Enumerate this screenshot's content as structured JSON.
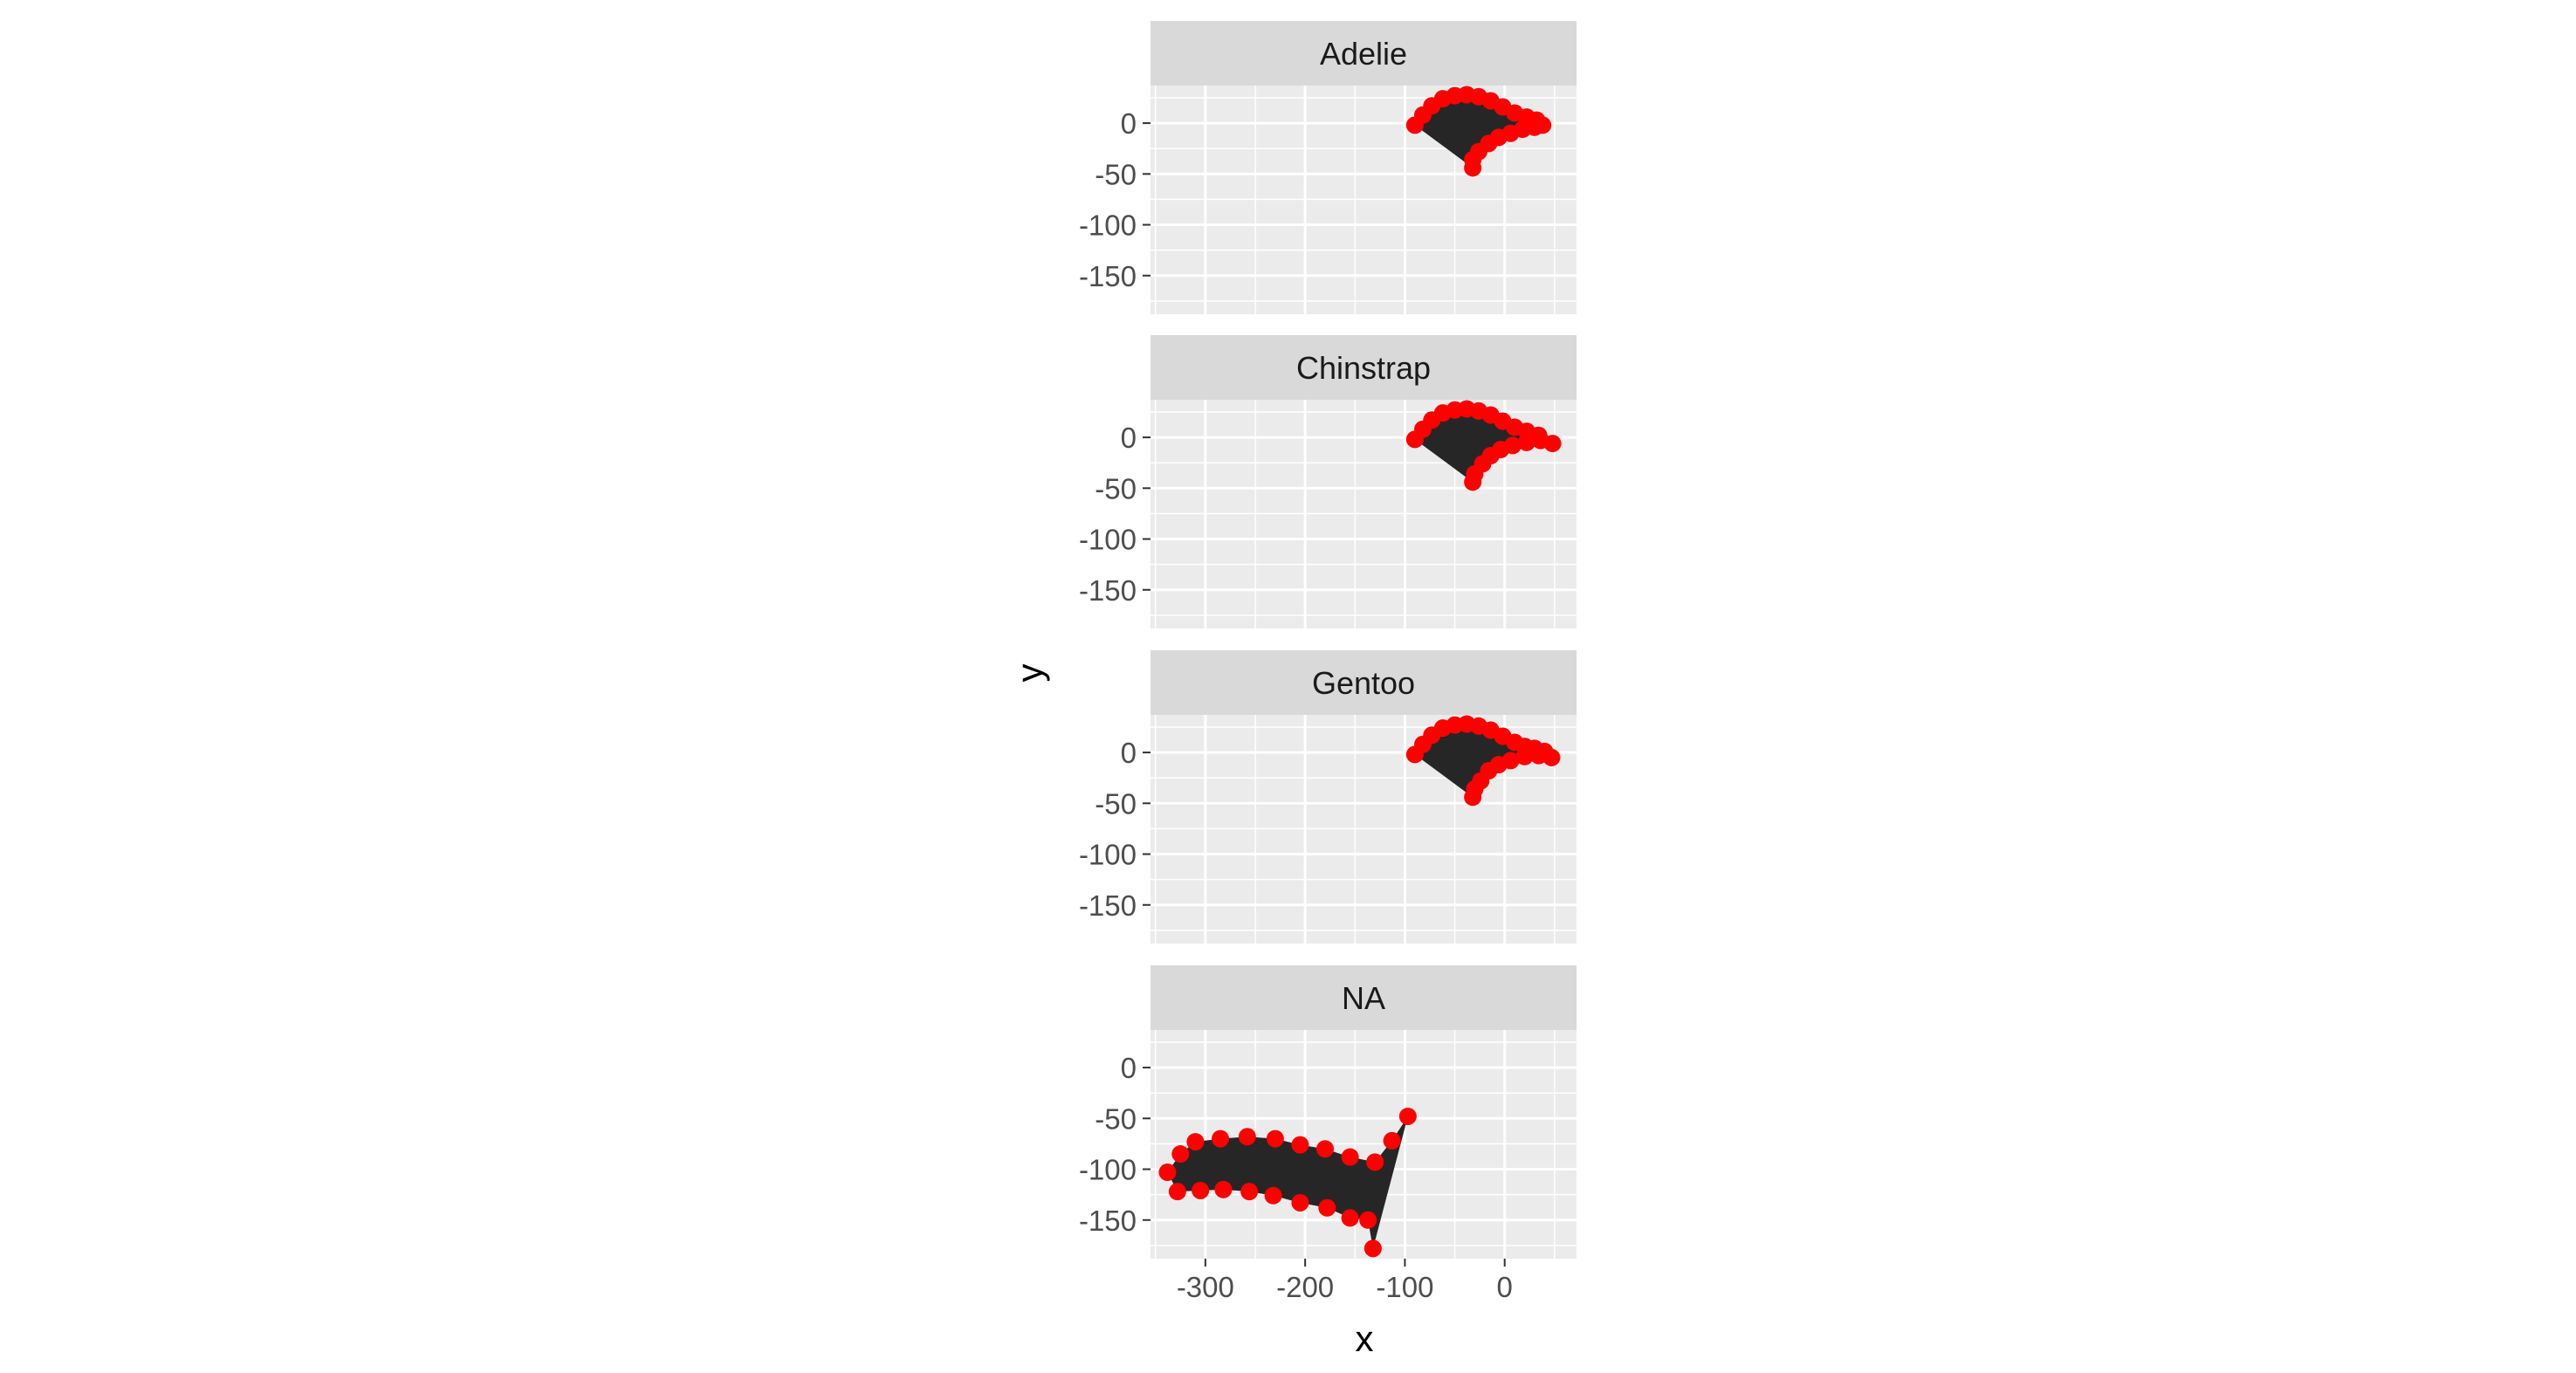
{
  "chart_data": {
    "type": "scatter",
    "facet_by": "species",
    "xlabel": "x",
    "ylabel": "y",
    "xlim": [
      -355,
      72
    ],
    "ylim": [
      -188,
      37
    ],
    "x_ticks": [
      -300,
      -200,
      -100,
      0
    ],
    "y_ticks": [
      0,
      -50,
      -100,
      -150
    ],
    "grid": true,
    "panel_background": "#ebebeb",
    "strip_background": "#d9d9d9",
    "point_color": "#ff0000",
    "fill_color": "#262626",
    "panels": [
      {
        "label": "Adelie",
        "points": [
          [
            -90,
            -2
          ],
          [
            -82,
            8
          ],
          [
            -73,
            17
          ],
          [
            -62,
            24
          ],
          [
            -50,
            27
          ],
          [
            -38,
            28
          ],
          [
            -26,
            26
          ],
          [
            -14,
            22
          ],
          [
            -2,
            16
          ],
          [
            10,
            10
          ],
          [
            22,
            6
          ],
          [
            32,
            3
          ],
          [
            38,
            -2
          ],
          [
            30,
            -4
          ],
          [
            18,
            -6
          ],
          [
            6,
            -10
          ],
          [
            -6,
            -14
          ],
          [
            -16,
            -20
          ],
          [
            -26,
            -28
          ],
          [
            -32,
            -36
          ],
          [
            -32,
            -44
          ]
        ]
      },
      {
        "label": "Chinstrap",
        "points": [
          [
            -90,
            -2
          ],
          [
            -82,
            8
          ],
          [
            -73,
            17
          ],
          [
            -62,
            24
          ],
          [
            -50,
            27
          ],
          [
            -38,
            28
          ],
          [
            -26,
            26
          ],
          [
            -14,
            22
          ],
          [
            -2,
            16
          ],
          [
            10,
            10
          ],
          [
            22,
            6
          ],
          [
            34,
            2
          ],
          [
            48,
            -6
          ],
          [
            36,
            -3
          ],
          [
            22,
            -5
          ],
          [
            8,
            -8
          ],
          [
            -4,
            -12
          ],
          [
            -14,
            -18
          ],
          [
            -22,
            -26
          ],
          [
            -30,
            -36
          ],
          [
            -32,
            -44
          ]
        ]
      },
      {
        "label": "Gentoo",
        "points": [
          [
            -90,
            -2
          ],
          [
            -82,
            8
          ],
          [
            -73,
            17
          ],
          [
            -62,
            24
          ],
          [
            -50,
            27
          ],
          [
            -38,
            28
          ],
          [
            -26,
            26
          ],
          [
            -14,
            22
          ],
          [
            -2,
            16
          ],
          [
            10,
            10
          ],
          [
            20,
            6
          ],
          [
            30,
            4
          ],
          [
            40,
            1
          ],
          [
            47,
            -5
          ],
          [
            34,
            -3
          ],
          [
            20,
            -4
          ],
          [
            6,
            -8
          ],
          [
            -6,
            -12
          ],
          [
            -16,
            -18
          ],
          [
            -24,
            -28
          ],
          [
            -30,
            -36
          ],
          [
            -32,
            -44
          ]
        ]
      },
      {
        "label": "NA",
        "points": [
          [
            -338,
            -103
          ],
          [
            -325,
            -85
          ],
          [
            -310,
            -73
          ],
          [
            -285,
            -70
          ],
          [
            -258,
            -68
          ],
          [
            -230,
            -70
          ],
          [
            -205,
            -76
          ],
          [
            -180,
            -80
          ],
          [
            -155,
            -88
          ],
          [
            -130,
            -93
          ],
          [
            -113,
            -72
          ],
          [
            -97,
            -48
          ],
          [
            -132,
            -178
          ],
          [
            -137,
            -150
          ],
          [
            -155,
            -148
          ],
          [
            -178,
            -138
          ],
          [
            -205,
            -133
          ],
          [
            -232,
            -126
          ],
          [
            -256,
            -122
          ],
          [
            -282,
            -120
          ],
          [
            -305,
            -121
          ],
          [
            -328,
            -122
          ]
        ]
      }
    ]
  }
}
